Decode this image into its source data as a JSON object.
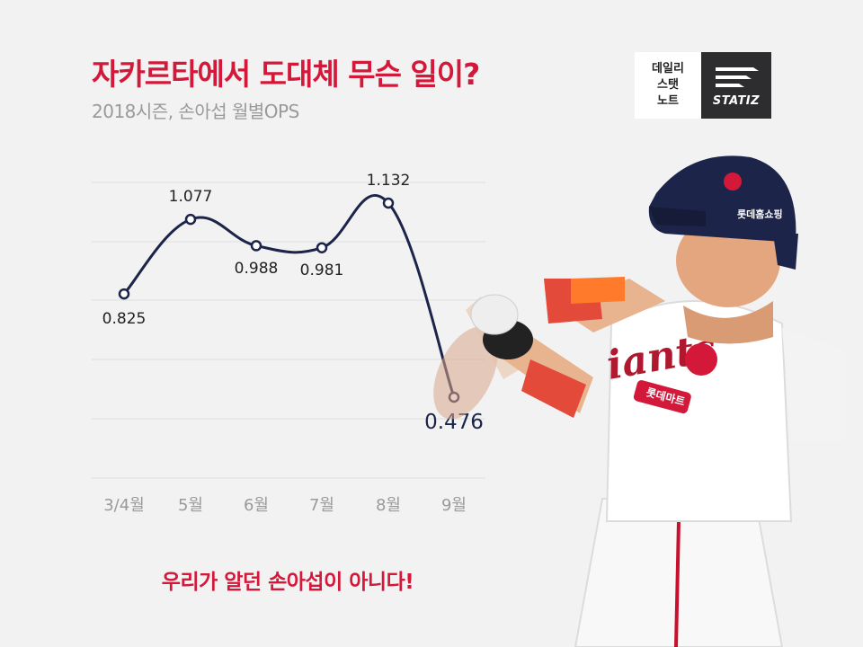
{
  "title": "자카르타에서 도대체 무슨 일이?",
  "subtitle": "2018시즌, 손아섭 월별OPS",
  "logo": {
    "lines": [
      "데일리",
      "스탯",
      "노트"
    ],
    "brand": "STATIZ"
  },
  "slogan": "우리가 알던 손아섭이 아니다!",
  "player": {
    "helmet_text": "롯데홈쇼핑",
    "jersey_patch": "롯데마트"
  },
  "colors": {
    "title": "#d3183a",
    "line": "#1c2449",
    "grid": "#dddddd",
    "tick": "#9a9a9a"
  },
  "chart_data": {
    "type": "line",
    "categories": [
      "3/4월",
      "5월",
      "6월",
      "7월",
      "8월",
      "9월"
    ],
    "values": [
      0.825,
      1.077,
      0.988,
      0.981,
      1.132,
      0.476
    ],
    "labels": [
      "0.825",
      "1.077",
      "0.988",
      "0.981",
      "1.132",
      "0.476"
    ],
    "grid": true,
    "smooth": true
  }
}
